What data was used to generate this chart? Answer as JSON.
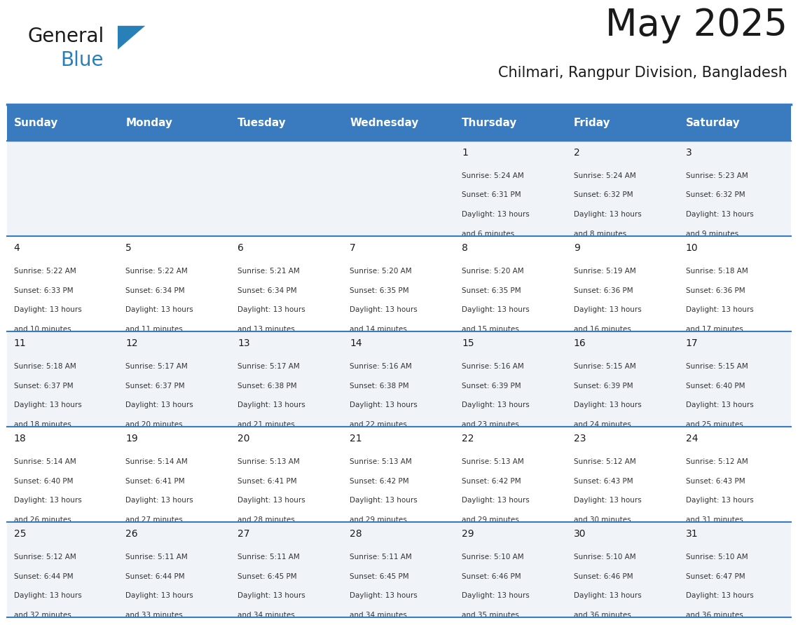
{
  "title": "May 2025",
  "subtitle": "Chilmari, Rangpur Division, Bangladesh",
  "header_bg_color": "#3a7abf",
  "header_text_color": "#ffffff",
  "day_names": [
    "Sunday",
    "Monday",
    "Tuesday",
    "Wednesday",
    "Thursday",
    "Friday",
    "Saturday"
  ],
  "row_bg_even": "#f0f4f8",
  "row_bg_odd": "#ffffff",
  "cell_text_color": "#333333",
  "date_text_color": "#1a1a1a",
  "border_color": "#3a7abf",
  "title_color": "#1a1a1a",
  "subtitle_color": "#1a1a1a",
  "general_color": "#1a1a1a",
  "blue_color": "#2980b9",
  "weeks": [
    {
      "days": [
        {
          "date": "",
          "sunrise": "",
          "sunset": "",
          "daylight": ""
        },
        {
          "date": "",
          "sunrise": "",
          "sunset": "",
          "daylight": ""
        },
        {
          "date": "",
          "sunrise": "",
          "sunset": "",
          "daylight": ""
        },
        {
          "date": "",
          "sunrise": "",
          "sunset": "",
          "daylight": ""
        },
        {
          "date": "1",
          "sunrise": "5:24 AM",
          "sunset": "6:31 PM",
          "daylight": "13 hours and 6 minutes."
        },
        {
          "date": "2",
          "sunrise": "5:24 AM",
          "sunset": "6:32 PM",
          "daylight": "13 hours and 8 minutes."
        },
        {
          "date": "3",
          "sunrise": "5:23 AM",
          "sunset": "6:32 PM",
          "daylight": "13 hours and 9 minutes."
        }
      ]
    },
    {
      "days": [
        {
          "date": "4",
          "sunrise": "5:22 AM",
          "sunset": "6:33 PM",
          "daylight": "13 hours and 10 minutes."
        },
        {
          "date": "5",
          "sunrise": "5:22 AM",
          "sunset": "6:34 PM",
          "daylight": "13 hours and 11 minutes."
        },
        {
          "date": "6",
          "sunrise": "5:21 AM",
          "sunset": "6:34 PM",
          "daylight": "13 hours and 13 minutes."
        },
        {
          "date": "7",
          "sunrise": "5:20 AM",
          "sunset": "6:35 PM",
          "daylight": "13 hours and 14 minutes."
        },
        {
          "date": "8",
          "sunrise": "5:20 AM",
          "sunset": "6:35 PM",
          "daylight": "13 hours and 15 minutes."
        },
        {
          "date": "9",
          "sunrise": "5:19 AM",
          "sunset": "6:36 PM",
          "daylight": "13 hours and 16 minutes."
        },
        {
          "date": "10",
          "sunrise": "5:18 AM",
          "sunset": "6:36 PM",
          "daylight": "13 hours and 17 minutes."
        }
      ]
    },
    {
      "days": [
        {
          "date": "11",
          "sunrise": "5:18 AM",
          "sunset": "6:37 PM",
          "daylight": "13 hours and 18 minutes."
        },
        {
          "date": "12",
          "sunrise": "5:17 AM",
          "sunset": "6:37 PM",
          "daylight": "13 hours and 20 minutes."
        },
        {
          "date": "13",
          "sunrise": "5:17 AM",
          "sunset": "6:38 PM",
          "daylight": "13 hours and 21 minutes."
        },
        {
          "date": "14",
          "sunrise": "5:16 AM",
          "sunset": "6:38 PM",
          "daylight": "13 hours and 22 minutes."
        },
        {
          "date": "15",
          "sunrise": "5:16 AM",
          "sunset": "6:39 PM",
          "daylight": "13 hours and 23 minutes."
        },
        {
          "date": "16",
          "sunrise": "5:15 AM",
          "sunset": "6:39 PM",
          "daylight": "13 hours and 24 minutes."
        },
        {
          "date": "17",
          "sunrise": "5:15 AM",
          "sunset": "6:40 PM",
          "daylight": "13 hours and 25 minutes."
        }
      ]
    },
    {
      "days": [
        {
          "date": "18",
          "sunrise": "5:14 AM",
          "sunset": "6:40 PM",
          "daylight": "13 hours and 26 minutes."
        },
        {
          "date": "19",
          "sunrise": "5:14 AM",
          "sunset": "6:41 PM",
          "daylight": "13 hours and 27 minutes."
        },
        {
          "date": "20",
          "sunrise": "5:13 AM",
          "sunset": "6:41 PM",
          "daylight": "13 hours and 28 minutes."
        },
        {
          "date": "21",
          "sunrise": "5:13 AM",
          "sunset": "6:42 PM",
          "daylight": "13 hours and 29 minutes."
        },
        {
          "date": "22",
          "sunrise": "5:13 AM",
          "sunset": "6:42 PM",
          "daylight": "13 hours and 29 minutes."
        },
        {
          "date": "23",
          "sunrise": "5:12 AM",
          "sunset": "6:43 PM",
          "daylight": "13 hours and 30 minutes."
        },
        {
          "date": "24",
          "sunrise": "5:12 AM",
          "sunset": "6:43 PM",
          "daylight": "13 hours and 31 minutes."
        }
      ]
    },
    {
      "days": [
        {
          "date": "25",
          "sunrise": "5:12 AM",
          "sunset": "6:44 PM",
          "daylight": "13 hours and 32 minutes."
        },
        {
          "date": "26",
          "sunrise": "5:11 AM",
          "sunset": "6:44 PM",
          "daylight": "13 hours and 33 minutes."
        },
        {
          "date": "27",
          "sunrise": "5:11 AM",
          "sunset": "6:45 PM",
          "daylight": "13 hours and 34 minutes."
        },
        {
          "date": "28",
          "sunrise": "5:11 AM",
          "sunset": "6:45 PM",
          "daylight": "13 hours and 34 minutes."
        },
        {
          "date": "29",
          "sunrise": "5:10 AM",
          "sunset": "6:46 PM",
          "daylight": "13 hours and 35 minutes."
        },
        {
          "date": "30",
          "sunrise": "5:10 AM",
          "sunset": "6:46 PM",
          "daylight": "13 hours and 36 minutes."
        },
        {
          "date": "31",
          "sunrise": "5:10 AM",
          "sunset": "6:47 PM",
          "daylight": "13 hours and 36 minutes."
        }
      ]
    }
  ]
}
